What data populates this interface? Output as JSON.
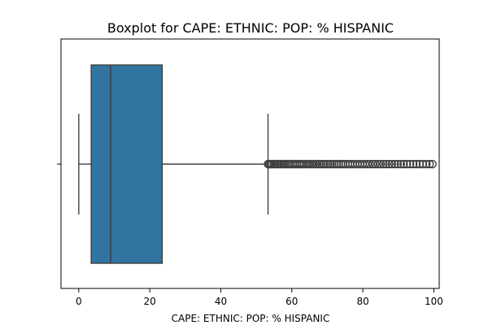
{
  "chart_data": {
    "type": "boxplot",
    "title": "Boxplot for CAPE: ETHNIC: POP: % HISPANIC",
    "xlabel": "CAPE: ETHNIC: POP: % HISPANIC",
    "ylabel": "",
    "xlim": [
      -5,
      101.5
    ],
    "x_ticks": [
      0,
      20,
      40,
      60,
      80,
      100
    ],
    "grid": false,
    "orientation": "horizontal",
    "box_color": "#3274a1",
    "line_color": "#3f3f3f",
    "stats": {
      "whisker_low": 0,
      "q1": 3.5,
      "median": 9,
      "q3": 23.5,
      "whisker_high": 53.3
    },
    "outliers": [
      53.3,
      53.6,
      54.0,
      54.4,
      54.9,
      55.3,
      55.8,
      56.2,
      56.7,
      57.1,
      57.6,
      58.0,
      58.5,
      59.0,
      59.4,
      59.9,
      60.4,
      60.9,
      61.4,
      61.9,
      62.4,
      62.9,
      63.4,
      64.0,
      64.5,
      65.0,
      65.6,
      66.1,
      66.7,
      67.2,
      67.8,
      68.4,
      69.0,
      69.6,
      70.2,
      70.8,
      71.4,
      72.0,
      72.6,
      73.2,
      73.9,
      74.5,
      75.1,
      75.8,
      76.4,
      77.1,
      77.8,
      78.5,
      79.2,
      79.9,
      80.6,
      81.3,
      82.0,
      82.8,
      83.5,
      84.3,
      85.0,
      85.8,
      86.6,
      87.4,
      88.2,
      89.0,
      89.8,
      90.7,
      91.5,
      92.4,
      93.3,
      94.2,
      95.1,
      96.0,
      96.9,
      97.9,
      98.8,
      99.6
    ]
  }
}
